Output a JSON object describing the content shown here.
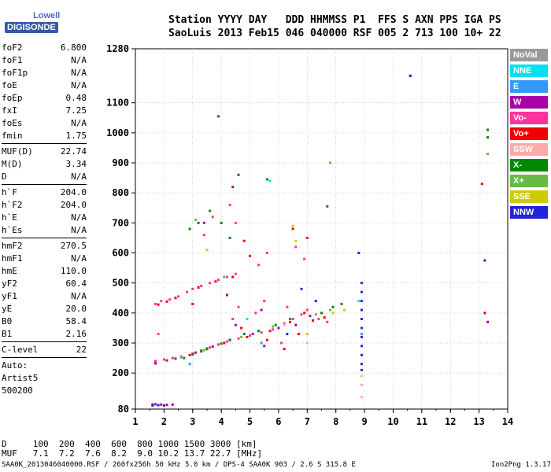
{
  "logo": {
    "line1": "Lowell",
    "line2": "DIGISONDE"
  },
  "header": {
    "line1": "Station YYYY DAY   DDD HHMMSS P1  FFS S AXN PPS IGA PS",
    "line2": "SaoLuis 2013 Feb15 046 040000 RSF 005 2 713 100 10+ 22"
  },
  "params": [
    {
      "name": "foF2",
      "value": "6.800"
    },
    {
      "name": "foF1",
      "value": "N/A"
    },
    {
      "name": "foF1p",
      "value": "N/A"
    },
    {
      "name": "foE",
      "value": "N/A"
    },
    {
      "name": "foEp",
      "value": "0.48"
    },
    {
      "name": "fxI",
      "value": "7.25"
    },
    {
      "name": "foEs",
      "value": "N/A"
    },
    {
      "name": "fmin",
      "value": "1.75"
    },
    {
      "sep": true
    },
    {
      "name": "MUF(D)",
      "value": "22.74"
    },
    {
      "name": "M(D)",
      "value": "3.34"
    },
    {
      "name": "D",
      "value": "N/A"
    },
    {
      "sep": true
    },
    {
      "name": "h`F",
      "value": "204.0"
    },
    {
      "name": "h`F2",
      "value": "204.0"
    },
    {
      "name": "h`E",
      "value": "N/A"
    },
    {
      "name": "h`Es",
      "value": "N/A"
    },
    {
      "sep": true
    },
    {
      "name": "hmF2",
      "value": "270.5"
    },
    {
      "name": "hmF1",
      "value": "N/A"
    },
    {
      "name": "hmE",
      "value": "110.0"
    },
    {
      "name": "yF2",
      "value": "60.4"
    },
    {
      "name": "yF1",
      "value": "N/A"
    },
    {
      "name": "yE",
      "value": "20.0"
    },
    {
      "name": "B0",
      "value": "58.4"
    },
    {
      "name": "B1",
      "value": "2.16"
    },
    {
      "sep": true
    },
    {
      "name": "C-level",
      "value": "22"
    },
    {
      "sep": true
    }
  ],
  "auto": {
    "line1": "Auto:",
    "line2": "Artist5",
    "line3": "500200"
  },
  "legend": [
    {
      "label": "NoVal",
      "color": "#999999"
    },
    {
      "label": "NNE",
      "color": "#00e0f0"
    },
    {
      "label": "E",
      "color": "#3399ff"
    },
    {
      "label": "W",
      "color": "#aa00aa"
    },
    {
      "label": "Vo-",
      "color": "#ff3399"
    },
    {
      "label": "Vo+",
      "color": "#ee0000"
    },
    {
      "label": "SSW",
      "color": "#ffaaaa"
    },
    {
      "label": "X-",
      "color": "#008800"
    },
    {
      "label": "X+",
      "color": "#66bb44"
    },
    {
      "label": "SSE",
      "color": "#cccc00"
    },
    {
      "label": "NNW",
      "color": "#2222dd"
    }
  ],
  "chart_data": {
    "type": "scatter",
    "x_ticks": [
      "1",
      "2",
      "3",
      "4",
      "5",
      "6",
      "7",
      "8",
      "9",
      "10",
      "11",
      "12",
      "13",
      "14"
    ],
    "y_ticks": [
      "80",
      "200",
      "300",
      "400",
      "500",
      "600",
      "700",
      "800",
      "900",
      "1000",
      "1100",
      "1280"
    ],
    "xlim": [
      1,
      14
    ],
    "ylim": [
      80,
      1280
    ],
    "grid": true,
    "series": [
      {
        "name": "Vo-",
        "color": "#ff3399",
        "points": [
          [
            1.7,
            430
          ],
          [
            1.9,
            440
          ],
          [
            2.2,
            445
          ],
          [
            2.5,
            455
          ],
          [
            2.8,
            470
          ],
          [
            3.0,
            480
          ],
          [
            3.3,
            490
          ],
          [
            3.6,
            500
          ],
          [
            3.9,
            510
          ],
          [
            4.2,
            520
          ],
          [
            4.5,
            530
          ],
          [
            1.7,
            240
          ],
          [
            2.0,
            245
          ],
          [
            2.3,
            250
          ],
          [
            2.6,
            255
          ],
          [
            3.0,
            265
          ],
          [
            3.3,
            275
          ],
          [
            3.6,
            285
          ],
          [
            3.9,
            295
          ],
          [
            4.2,
            305
          ],
          [
            4.6,
            315
          ],
          [
            5.0,
            325
          ],
          [
            5.4,
            335
          ],
          [
            5.8,
            345
          ],
          [
            6.2,
            365
          ],
          [
            6.5,
            380
          ],
          [
            6.8,
            395
          ],
          [
            7.0,
            410
          ],
          [
            7.4,
            380
          ],
          [
            7.7,
            370
          ],
          [
            4.4,
            380
          ],
          [
            4.6,
            420
          ],
          [
            5.2,
            400
          ],
          [
            5.5,
            440
          ],
          [
            6.1,
            300
          ],
          [
            6.3,
            420
          ],
          [
            6.6,
            620
          ],
          [
            6.9,
            580
          ],
          [
            3.4,
            660
          ],
          [
            3.7,
            720
          ],
          [
            4.3,
            760
          ],
          [
            4.5,
            700
          ],
          [
            5.3,
            560
          ],
          [
            5.6,
            600
          ],
          [
            1.8,
            330
          ]
        ]
      },
      {
        "name": "Vo+",
        "color": "#ee0000",
        "points": [
          [
            1.8,
            428
          ],
          [
            2.1,
            438
          ],
          [
            2.4,
            450
          ],
          [
            3.2,
            485
          ],
          [
            3.8,
            505
          ],
          [
            4.4,
            520
          ],
          [
            2.1,
            242
          ],
          [
            2.9,
            260
          ],
          [
            3.5,
            280
          ],
          [
            4.1,
            300
          ],
          [
            4.9,
            320
          ],
          [
            5.7,
            340
          ],
          [
            6.4,
            370
          ],
          [
            6.9,
            400
          ],
          [
            7.2,
            375
          ],
          [
            7.6,
            385
          ],
          [
            4.7,
            350
          ],
          [
            5.6,
            310
          ],
          [
            6.2,
            280
          ],
          [
            6.7,
            330
          ],
          [
            3.0,
            430
          ],
          [
            4.8,
            640
          ],
          [
            5.0,
            590
          ],
          [
            6.5,
            680
          ],
          [
            7.0,
            650
          ],
          [
            13.2,
            400
          ],
          [
            13.1,
            830
          ]
        ]
      },
      {
        "name": "W",
        "color": "#aa00aa",
        "points": [
          [
            1.6,
            95
          ],
          [
            1.7,
            96
          ],
          [
            1.9,
            95
          ],
          [
            2.1,
            94
          ],
          [
            2.3,
            95
          ],
          [
            1.7,
            232
          ],
          [
            2.4,
            248
          ],
          [
            3.1,
            268
          ],
          [
            3.7,
            288
          ],
          [
            4.3,
            310
          ],
          [
            5.1,
            330
          ],
          [
            5.5,
            290
          ],
          [
            6.0,
            350
          ],
          [
            6.6,
            360
          ],
          [
            7.1,
            390
          ],
          [
            4.5,
            360
          ],
          [
            5.4,
            410
          ],
          [
            4.2,
            460
          ],
          [
            3.4,
            700
          ],
          [
            4.4,
            820
          ],
          [
            4.6,
            860
          ],
          [
            3.9,
            1055
          ],
          [
            13.3,
            370
          ],
          [
            10.6,
            1190
          ]
        ]
      },
      {
        "name": "X-",
        "color": "#008800",
        "points": [
          [
            2.7,
            250
          ],
          [
            3.0,
            262
          ],
          [
            3.3,
            272
          ],
          [
            3.5,
            282
          ],
          [
            4.0,
            298
          ],
          [
            4.3,
            310
          ],
          [
            4.8,
            330
          ],
          [
            5.3,
            340
          ],
          [
            5.9,
            360
          ],
          [
            6.4,
            380
          ],
          [
            7.5,
            400
          ],
          [
            7.9,
            420
          ],
          [
            8.2,
            430
          ],
          [
            3.2,
            700
          ],
          [
            3.6,
            740
          ],
          [
            4.0,
            700
          ],
          [
            4.3,
            650
          ],
          [
            5.6,
            845
          ],
          [
            7.7,
            755
          ],
          [
            13.3,
            985
          ],
          [
            13.3,
            1010
          ],
          [
            2.9,
            680
          ]
        ]
      },
      {
        "name": "X+",
        "color": "#66bb44",
        "points": [
          [
            2.6,
            252
          ],
          [
            3.4,
            276
          ],
          [
            4.7,
            320
          ],
          [
            5.8,
            355
          ],
          [
            7.3,
            395
          ],
          [
            7.8,
            410
          ],
          [
            4.1,
            520
          ],
          [
            3.1,
            710
          ],
          [
            7.8,
            900
          ],
          [
            13.3,
            930
          ]
        ]
      },
      {
        "name": "SSE",
        "color": "#cccc00",
        "points": [
          [
            6.5,
            690
          ],
          [
            6.6,
            640
          ],
          [
            7.9,
            400
          ],
          [
            8.3,
            410
          ],
          [
            7.0,
            330
          ],
          [
            3.5,
            610
          ]
        ]
      },
      {
        "name": "NNW",
        "color": "#2222dd",
        "points": [
          [
            1.6,
            92
          ],
          [
            1.8,
            93
          ],
          [
            2.0,
            92
          ],
          [
            8.9,
            500
          ],
          [
            8.9,
            470
          ],
          [
            8.9,
            440
          ],
          [
            8.9,
            410
          ],
          [
            8.9,
            380
          ],
          [
            8.9,
            350
          ],
          [
            8.9,
            320
          ],
          [
            8.9,
            290
          ],
          [
            8.9,
            260
          ],
          [
            8.9,
            230
          ],
          [
            8.9,
            210
          ],
          [
            8.8,
            600
          ],
          [
            6.8,
            480
          ],
          [
            7.3,
            440
          ],
          [
            6.3,
            330
          ],
          [
            10.6,
            1190
          ],
          [
            13.2,
            575
          ]
        ]
      },
      {
        "name": "NNE",
        "color": "#00e0f0",
        "points": [
          [
            5.7,
            840
          ],
          [
            8.8,
            440
          ],
          [
            4.9,
            380
          ]
        ]
      },
      {
        "name": "E",
        "color": "#3399ff",
        "points": [
          [
            2.9,
            230
          ],
          [
            5.4,
            300
          ],
          [
            8.9,
            330
          ]
        ]
      },
      {
        "name": "SSW",
        "color": "#ffaaaa",
        "points": [
          [
            8.9,
            120
          ],
          [
            8.9,
            160
          ],
          [
            8.9,
            190
          ],
          [
            6.2,
            360
          ],
          [
            7.0,
            300
          ]
        ]
      }
    ]
  },
  "footer": {
    "line1": "D     100  200  400  600  800 1000 1500 3000 [km]",
    "line2": "MUF   7.1  7.2  7.6  8.2  9.0 10.2 13.7 22.7 [MHz]",
    "line3": "SAA0K_2013046040000.RSF / 260fx256h 50 kHz 5.0 km / DPS-4 SAA0K 903 / 2.6 S 315.8 E",
    "version": "Ion2Png 1.3.17"
  }
}
